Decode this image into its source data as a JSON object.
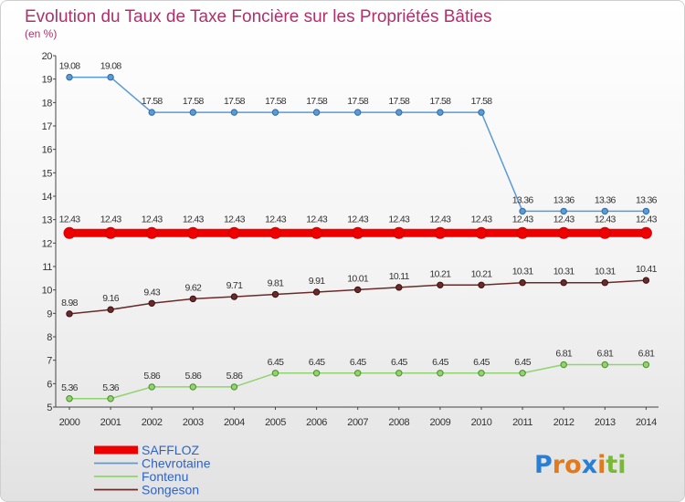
{
  "title": "Evolution du Taux de Taxe Foncière sur les Propriétés Bâties",
  "subtitle": "(en %)",
  "logo": {
    "letters": [
      "P",
      "r",
      "o",
      "x",
      "i",
      "t",
      "i"
    ],
    "colors": [
      "#2a7fd4",
      "#e07a1c",
      "#e07a1c",
      "#2a7fd4",
      "#e07a1c",
      "#7ab83a",
      "#7ab83a"
    ]
  },
  "chart_data": {
    "type": "line",
    "title": "Evolution du Taux de Taxe Foncière sur les Propriétés Bâties",
    "ylabel": "(en %)",
    "xlabel": "",
    "x": [
      "2000",
      "2001",
      "2002",
      "2003",
      "2004",
      "2005",
      "2006",
      "2007",
      "2008",
      "2009",
      "2010",
      "2011",
      "2012",
      "2013",
      "2014"
    ],
    "ylim": [
      5,
      20
    ],
    "yticks": [
      "5",
      "6",
      "7",
      "8",
      "9",
      "10",
      "11",
      "12",
      "13",
      "14",
      "15",
      "16",
      "17",
      "18",
      "19",
      "20"
    ],
    "series": [
      {
        "name": "SAFFLOZ",
        "color": "#ee0000",
        "values": [
          12.43,
          12.43,
          12.43,
          12.43,
          12.43,
          12.43,
          12.43,
          12.43,
          12.43,
          12.43,
          12.43,
          12.43,
          12.43,
          12.43,
          12.43
        ],
        "labels": [
          "12.43",
          "12.43",
          "12.43",
          "12.43",
          "12.43",
          "12.43",
          "12.43",
          "12.43",
          "12.43",
          "12.43",
          "12.43",
          "12.43",
          "12.43",
          "12.43",
          "12.43"
        ]
      },
      {
        "name": "Chevrotaine",
        "color": "#5b9bd5",
        "values": [
          19.08,
          19.08,
          17.58,
          17.58,
          17.58,
          17.58,
          17.58,
          17.58,
          17.58,
          17.58,
          17.58,
          13.36,
          13.36,
          13.36,
          13.36
        ],
        "labels": [
          "19.08",
          "19.08",
          "17.58",
          "17.58",
          "17.58",
          "17.58",
          "17.58",
          "17.58",
          "17.58",
          "17.58",
          "17.58",
          "13.36",
          "13.36",
          "13.36",
          "13.36"
        ]
      },
      {
        "name": "Fontenu",
        "color": "#8fd46e",
        "values": [
          5.36,
          5.36,
          5.86,
          5.86,
          5.86,
          6.45,
          6.45,
          6.45,
          6.45,
          6.45,
          6.45,
          6.45,
          6.81,
          6.81,
          6.81
        ],
        "labels": [
          "5.36",
          "5.36",
          "5.86",
          "5.86",
          "5.86",
          "6.45",
          "6.45",
          "6.45",
          "6.45",
          "6.45",
          "6.45",
          "6.45",
          "6.81",
          "6.81",
          "6.81"
        ]
      },
      {
        "name": "Songeson",
        "color": "#6b2a2a",
        "values": [
          8.98,
          9.16,
          9.43,
          9.62,
          9.71,
          9.81,
          9.91,
          10.01,
          10.11,
          10.21,
          10.21,
          10.31,
          10.31,
          10.31,
          10.41
        ],
        "labels": [
          "8.98",
          "9.16",
          "9.43",
          "9.62",
          "9.71",
          "9.81",
          "9.91",
          "10.01",
          "10.11",
          "10.21",
          "10.21",
          "10.31",
          "10.31",
          "10.31",
          "10.41"
        ]
      }
    ],
    "legend_position": "bottom-left"
  }
}
